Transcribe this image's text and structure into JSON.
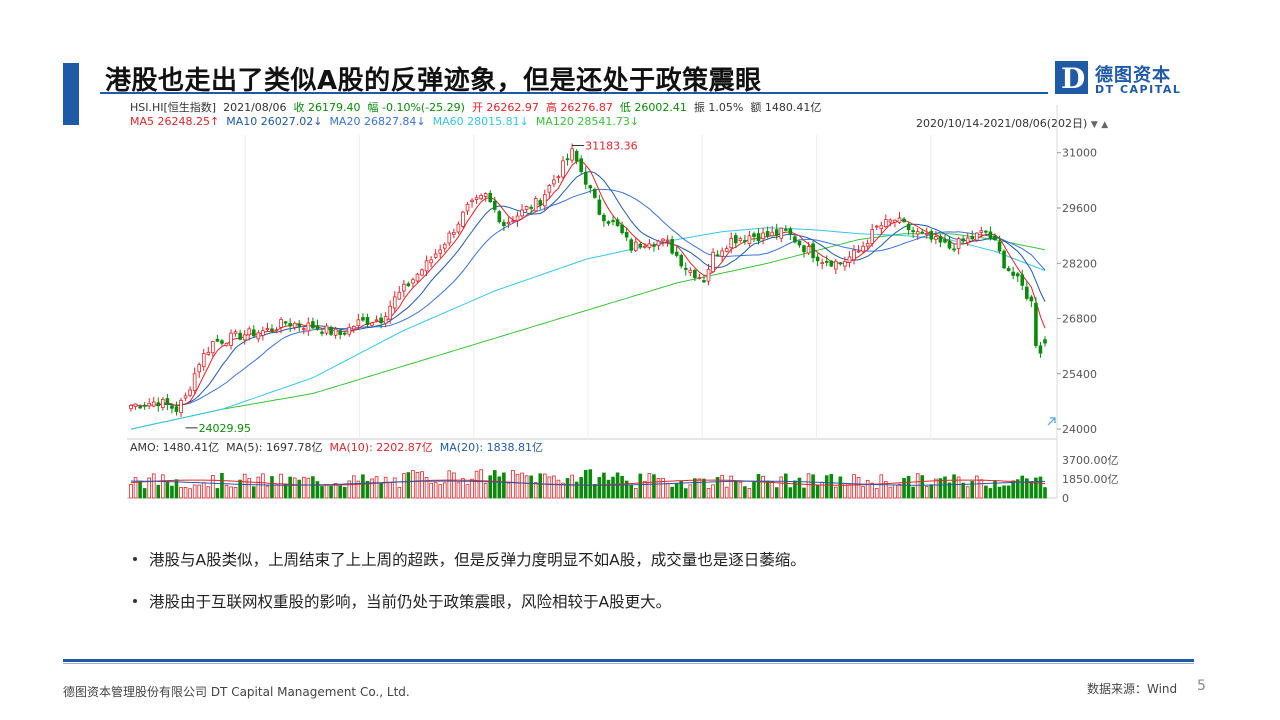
{
  "slide": {
    "title": "港股也走出了类似A股的反弹迹象，但是还处于政策震眼",
    "logo_cn": "德图资本",
    "logo_en": "DT CAPITAL",
    "logo_mark": "D",
    "bullets": [
      "港股与A股类似，上周结束了上上周的超跌，但是反弹力度明显不如A股，成交量也是逐日萎缩。",
      "港股由于互联网权重股的影响，当前仍处于政策震眼，风险相较于A股更大。"
    ],
    "footer_company": "德图资本管理股份有限公司 DT Capital Management Co., Ltd.",
    "footer_source": "数据来源：Wind",
    "page_number": "5"
  },
  "colors": {
    "accent": "#1f5aa6",
    "up": "#e0252b",
    "down": "#0a8a0a",
    "ma5": "#e0252b",
    "ma10": "#1f5aa6",
    "ma20": "#3b73d8",
    "ma60": "#36c6e6",
    "ma120": "#3cc13c"
  },
  "chart_header": {
    "line1": [
      {
        "text": "HSI.HI[恒生指数]",
        "color": "#333333"
      },
      {
        "text": "2021/08/06",
        "color": "#333333"
      },
      {
        "text": "收 26179.40",
        "color": "#0a8a0a"
      },
      {
        "text": "幅 -0.10%(-25.29)",
        "color": "#0a8a0a"
      },
      {
        "text": "开 26262.97",
        "color": "#e0252b"
      },
      {
        "text": "高 26276.87",
        "color": "#e0252b"
      },
      {
        "text": "低 26002.41",
        "color": "#0a8a0a"
      },
      {
        "text": "振 1.05%",
        "color": "#333333"
      },
      {
        "text": "额 1480.41亿",
        "color": "#333333"
      }
    ],
    "line2": [
      {
        "text": "MA5 26248.25↑",
        "color": "#e0252b"
      },
      {
        "text": "MA10 26027.02↓",
        "color": "#1f5aa6"
      },
      {
        "text": "MA20 26827.84↓",
        "color": "#3b73d8"
      },
      {
        "text": "MA60 28015.81↓",
        "color": "#36c6e6"
      },
      {
        "text": "MA120 28541.73↓",
        "color": "#3cc13c"
      }
    ],
    "range": "2020/10/14-2021/08/06(202日)",
    "vol_line": [
      {
        "text": "AMO: 1480.41亿",
        "color": "#333333"
      },
      {
        "text": "MA(5): 1697.78亿",
        "color": "#333333"
      },
      {
        "text": "MA(10): 2202.87亿",
        "color": "#e0252b"
      },
      {
        "text": "MA(20): 1838.81亿",
        "color": "#1f5aa6"
      }
    ]
  },
  "chart_data": {
    "type": "candlestick",
    "title": "HSI.HI[恒生指数]",
    "date_range": [
      "2020/10/14",
      "2021/08/06"
    ],
    "num_days": 202,
    "price_axis": {
      "ticks": [
        24000,
        25400,
        26800,
        28200,
        29600,
        31000
      ],
      "min": 23900,
      "max": 31500
    },
    "volume_axis": {
      "ticks": [
        0,
        1850,
        3700
      ],
      "tick_labels": [
        "0",
        "1850.00亿",
        "3700.00亿"
      ],
      "max": 4000
    },
    "annotations": [
      {
        "label": "31183.36",
        "value": 31183.36,
        "type": "high"
      },
      {
        "label": "24029.95",
        "value": 24029.95,
        "type": "low"
      }
    ],
    "latest": {
      "close": 26179.4,
      "open": 26262.97,
      "high": 26276.87,
      "low": 26002.41,
      "amount": 1480.41
    },
    "moving_averages": {
      "MA5": 26248.25,
      "MA10": 26027.02,
      "MA20": 26827.84,
      "MA60": 28015.81,
      "MA120": 28541.73
    },
    "close_path": [
      [
        0,
        24600
      ],
      [
        6,
        24700
      ],
      [
        10,
        24500
      ],
      [
        12,
        24800
      ],
      [
        15,
        25700
      ],
      [
        18,
        26200
      ],
      [
        25,
        26400
      ],
      [
        30,
        26500
      ],
      [
        34,
        26700
      ],
      [
        40,
        26600
      ],
      [
        46,
        26400
      ],
      [
        50,
        26700
      ],
      [
        55,
        26800
      ],
      [
        58,
        27300
      ],
      [
        62,
        27800
      ],
      [
        66,
        28300
      ],
      [
        70,
        28900
      ],
      [
        74,
        29600
      ],
      [
        78,
        29900
      ],
      [
        82,
        29200
      ],
      [
        86,
        29500
      ],
      [
        90,
        29800
      ],
      [
        94,
        30500
      ],
      [
        97,
        31000
      ],
      [
        100,
        30300
      ],
      [
        103,
        29500
      ],
      [
        107,
        29100
      ],
      [
        110,
        28600
      ],
      [
        114,
        28800
      ],
      [
        118,
        28700
      ],
      [
        122,
        28100
      ],
      [
        126,
        27800
      ],
      [
        128,
        28400
      ],
      [
        132,
        28800
      ],
      [
        136,
        28900
      ],
      [
        140,
        28900
      ],
      [
        144,
        29000
      ],
      [
        148,
        28600
      ],
      [
        152,
        28300
      ],
      [
        156,
        28200
      ],
      [
        160,
        28500
      ],
      [
        164,
        29100
      ],
      [
        168,
        29300
      ],
      [
        172,
        29000
      ],
      [
        176,
        28800
      ],
      [
        180,
        28600
      ],
      [
        184,
        28800
      ],
      [
        188,
        29000
      ],
      [
        190,
        28700
      ],
      [
        192,
        28200
      ],
      [
        194,
        27900
      ],
      [
        196,
        27600
      ],
      [
        198,
        27200
      ],
      [
        199,
        26200
      ],
      [
        200,
        26000
      ],
      [
        201,
        26179
      ]
    ],
    "ma120_path": [
      [
        0,
        24000
      ],
      [
        20,
        24500
      ],
      [
        40,
        24900
      ],
      [
        60,
        25600
      ],
      [
        80,
        26300
      ],
      [
        100,
        27000
      ],
      [
        120,
        27700
      ],
      [
        140,
        28200
      ],
      [
        150,
        28500
      ],
      [
        160,
        28800
      ],
      [
        170,
        28950
      ],
      [
        180,
        28950
      ],
      [
        190,
        28800
      ],
      [
        201,
        28541
      ]
    ],
    "ma60_path": [
      [
        0,
        24000
      ],
      [
        20,
        24500
      ],
      [
        40,
        25300
      ],
      [
        60,
        26500
      ],
      [
        80,
        27500
      ],
      [
        100,
        28300
      ],
      [
        120,
        28800
      ],
      [
        130,
        29000
      ],
      [
        140,
        29100
      ],
      [
        150,
        29050
      ],
      [
        160,
        28950
      ],
      [
        170,
        28900
      ],
      [
        180,
        28800
      ],
      [
        190,
        28500
      ],
      [
        201,
        28015
      ]
    ]
  }
}
